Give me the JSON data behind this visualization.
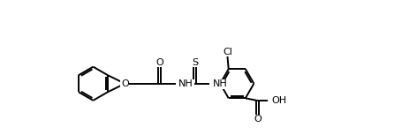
{
  "bg_color": "#ffffff",
  "line_color": "#000000",
  "lw": 1.4,
  "figsize": [
    4.72,
    1.53
  ],
  "dpi": 100,
  "xlim": [
    0,
    11.5
  ],
  "ylim": [
    -2.2,
    3.2
  ]
}
